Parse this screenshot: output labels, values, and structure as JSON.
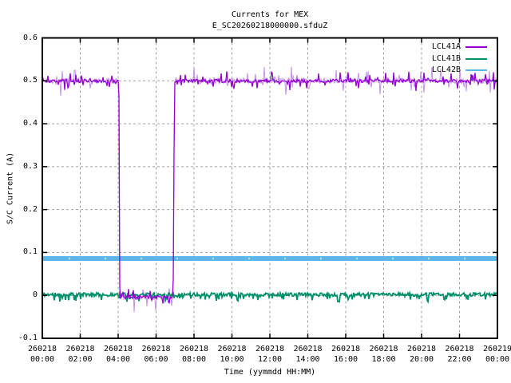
{
  "chart_data": {
    "type": "line",
    "title": "Currents for MEX",
    "subtitle": "E_SC20260218000000.sfduZ",
    "xlabel": "Time (yymmdd HH:MM)",
    "ylabel": "S/C Current (A)",
    "ylim": [
      -0.1,
      0.6
    ],
    "xlim_hours": [
      0,
      24
    ],
    "grid": true,
    "legend_position": "top-right-inside",
    "y_ticks": [
      {
        "label": "0.6",
        "value": 0.6
      },
      {
        "label": "0.5",
        "value": 0.5
      },
      {
        "label": "0.4",
        "value": 0.4
      },
      {
        "label": "0.3",
        "value": 0.3
      },
      {
        "label": "0.2",
        "value": 0.2
      },
      {
        "label": "0.1",
        "value": 0.1
      },
      {
        "label": "0",
        "value": 0
      },
      {
        "label": "-0.1",
        "value": -0.1
      }
    ],
    "x_ticks": [
      {
        "date": "260218",
        "time": "00:00",
        "hour": 0
      },
      {
        "date": "260218",
        "time": "02:00",
        "hour": 2
      },
      {
        "date": "260218",
        "time": "04:00",
        "hour": 4
      },
      {
        "date": "260218",
        "time": "06:00",
        "hour": 6
      },
      {
        "date": "260218",
        "time": "08:00",
        "hour": 8
      },
      {
        "date": "260218",
        "time": "10:00",
        "hour": 10
      },
      {
        "date": "260218",
        "time": "12:00",
        "hour": 12
      },
      {
        "date": "260218",
        "time": "14:00",
        "hour": 14
      },
      {
        "date": "260218",
        "time": "16:00",
        "hour": 16
      },
      {
        "date": "260218",
        "time": "18:00",
        "hour": 18
      },
      {
        "date": "260218",
        "time": "20:00",
        "hour": 20
      },
      {
        "date": "260218",
        "time": "22:00",
        "hour": 22
      },
      {
        "date": "260219",
        "time": "00:00",
        "hour": 24
      }
    ],
    "series": [
      {
        "name": "LCL41A",
        "color": "#9400d3",
        "halo_color": "#c490e8",
        "width": 1.3,
        "keypoints": [
          [
            0,
            0.5
          ],
          [
            4.03,
            0.5
          ],
          [
            4.05,
            0.44
          ],
          [
            4.07,
            -0.004
          ],
          [
            6.9,
            -0.004
          ],
          [
            6.94,
            0.3
          ],
          [
            6.98,
            0.5
          ],
          [
            24,
            0.5
          ]
        ],
        "noise": {
          "amp": 0.004,
          "spike_rate": 0.14,
          "spike_amp": 0.02,
          "spike_dir": "both"
        },
        "description": "~0.5 A with noise; drops to ~0 A between ~04:02 and ~06:57"
      },
      {
        "name": "LCL41B",
        "color": "#00916c",
        "width": 1.8,
        "keypoints": [
          [
            0,
            0.002
          ],
          [
            24,
            0.002
          ]
        ],
        "noise": {
          "amp": 0.004,
          "spike_rate": 0.12,
          "spike_amp": 0.014,
          "spike_dir": "down"
        },
        "description": "~0 A with small noise spikes, occasional dips to ~-0.015 A"
      },
      {
        "name": "LCL42B",
        "color": "#5cb6e8",
        "width": 6,
        "keypoints": [
          [
            0,
            0.086
          ],
          [
            24,
            0.086
          ]
        ],
        "noise": {
          "amp": 0,
          "spike_rate": 0,
          "spike_amp": 0,
          "spike_dir": "both"
        },
        "description": "constant thick band at ~0.086 A"
      }
    ]
  },
  "colors": {
    "background": "#ffffff",
    "axis": "#000000",
    "grid": "#a0a0a0",
    "text": "#000000",
    "blue_notch": "#b5e0f5"
  }
}
